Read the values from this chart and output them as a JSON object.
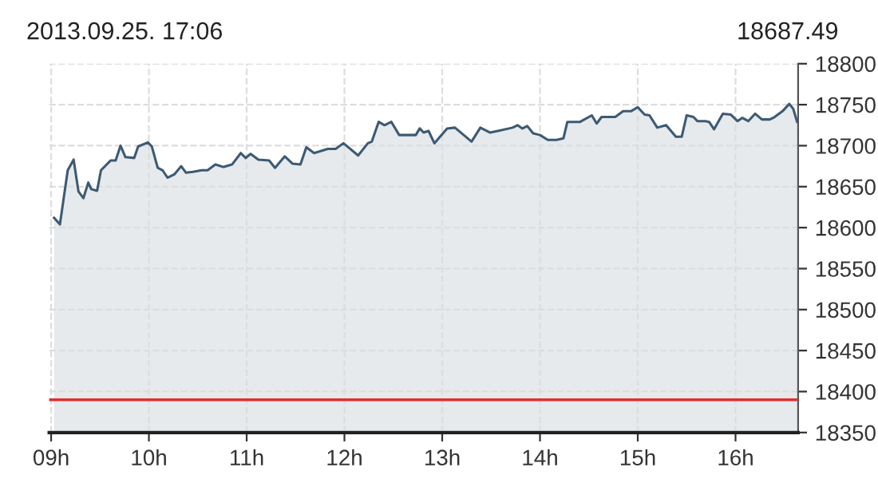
{
  "chart_data": {
    "type": "area",
    "title": "2013.09.25. 17:06",
    "subtitle": "18687.49",
    "x": [
      9.03,
      9.09,
      9.17,
      9.23,
      9.28,
      9.33,
      9.38,
      9.41,
      9.47,
      9.51,
      9.61,
      9.66,
      9.71,
      9.76,
      9.85,
      9.89,
      9.99,
      10.03,
      10.09,
      10.14,
      10.19,
      10.26,
      10.33,
      10.38,
      10.45,
      10.54,
      10.6,
      10.68,
      10.76,
      10.85,
      10.94,
      10.99,
      11.04,
      11.12,
      11.23,
      11.29,
      11.39,
      11.47,
      11.55,
      11.61,
      11.69,
      11.83,
      11.91,
      11.99,
      12.14,
      12.24,
      12.28,
      12.35,
      12.41,
      12.48,
      12.56,
      12.73,
      12.77,
      12.81,
      12.86,
      12.92,
      13.05,
      13.13,
      13.23,
      13.3,
      13.39,
      13.49,
      13.57,
      13.72,
      13.77,
      13.82,
      13.87,
      13.93,
      14.0,
      14.08,
      14.17,
      14.24,
      14.28,
      14.41,
      14.53,
      14.58,
      14.63,
      14.77,
      14.85,
      14.93,
      15.0,
      15.07,
      15.12,
      15.2,
      15.29,
      15.39,
      15.45,
      15.5,
      15.57,
      15.61,
      15.69,
      15.73,
      15.78,
      15.87,
      15.95,
      16.02,
      16.07,
      16.13,
      16.2,
      16.27,
      16.35,
      16.4,
      16.48,
      16.55,
      16.59,
      16.63
    ],
    "series": [
      {
        "color": "#3d5a73",
        "values": [
          18612,
          18604,
          18670,
          18683,
          18644,
          18636,
          18655,
          18647,
          18645,
          18670,
          18682,
          18682,
          18700,
          18686,
          18685,
          18699,
          18704,
          18699,
          18673,
          18670,
          18661,
          18665,
          18675,
          18667,
          18668,
          18670,
          18670,
          18677,
          18674,
          18677,
          18691,
          18685,
          18690,
          18683,
          18682,
          18673,
          18687,
          18678,
          18677,
          18698,
          18691,
          18696,
          18696,
          18703,
          18688,
          18703,
          18705,
          18729,
          18725,
          18729,
          18713,
          18713,
          18721,
          18716,
          18718,
          18703,
          18721,
          18722,
          18712,
          18705,
          18722,
          18716,
          18718,
          18722,
          18725,
          18721,
          18724,
          18715,
          18713,
          18707,
          18707,
          18709,
          18729,
          18729,
          18737,
          18727,
          18735,
          18735,
          18742,
          18742,
          18747,
          18738,
          18737,
          18722,
          18725,
          18711,
          18711,
          18737,
          18735,
          18730,
          18730,
          18729,
          18720,
          18739,
          18738,
          18730,
          18734,
          18730,
          18739,
          18732,
          18732,
          18735,
          18742,
          18751,
          18745,
          18729
        ]
      }
    ],
    "xlim": [
      8.98,
      16.64
    ],
    "xticks": [
      {
        "value": 9,
        "label": "09h"
      },
      {
        "value": 10,
        "label": "10h"
      },
      {
        "value": 11,
        "label": "11h"
      },
      {
        "value": 12,
        "label": "12h"
      },
      {
        "value": 13,
        "label": "13h"
      },
      {
        "value": 14,
        "label": "14h"
      },
      {
        "value": 15,
        "label": "15h"
      },
      {
        "value": 16,
        "label": "16h"
      }
    ],
    "ylim": [
      18350,
      18800
    ],
    "yticks": [
      18350,
      18400,
      18450,
      18500,
      18550,
      18600,
      18650,
      18700,
      18750,
      18800
    ],
    "ref_lines": [
      {
        "axis": "y",
        "value": 18390,
        "color": "#e03030"
      }
    ],
    "grid": true,
    "line_style": "solid"
  }
}
